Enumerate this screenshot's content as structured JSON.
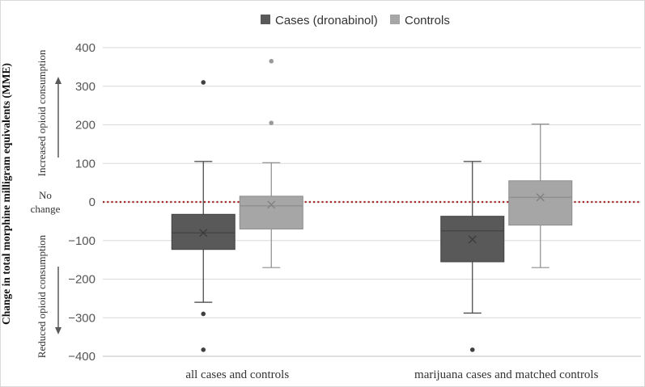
{
  "chart_data": {
    "type": "box",
    "title": "",
    "xlabel": "",
    "ylabel": "Change in total morphine milligram equivalents (MME)",
    "ylim": [
      -400,
      400
    ],
    "yticks": [
      400,
      300,
      200,
      100,
      0,
      -100,
      -200,
      -300,
      -400
    ],
    "grid": true,
    "legend_position": "top-center",
    "categories": [
      "all cases and controls",
      "marijuana cases and matched controls"
    ],
    "series": [
      {
        "name": "Cases (dronabinol)",
        "color": "#595959",
        "boxes": [
          {
            "min": -260,
            "q1": -123,
            "median": -80,
            "mean": -80,
            "q3": -32,
            "max": 105,
            "outliers": [
              310,
              -290,
              -383
            ]
          },
          {
            "min": -288,
            "q1": -155,
            "median": -75,
            "mean": -97,
            "q3": -37,
            "max": 105,
            "outliers": [
              -383
            ]
          }
        ]
      },
      {
        "name": "Controls",
        "color": "#a6a6a6",
        "boxes": [
          {
            "min": -170,
            "q1": -70,
            "median": -10,
            "mean": -7,
            "q3": 15,
            "max": 102,
            "outliers": [
              365,
              205
            ]
          },
          {
            "min": -170,
            "q1": -60,
            "median": 12,
            "mean": 12,
            "q3": 55,
            "max": 202,
            "outliers": []
          }
        ]
      }
    ],
    "reference_line": {
      "value": 0,
      "label_lines": [
        "No",
        "change"
      ],
      "color": "#a52a2a",
      "style": "dotted"
    },
    "annotations": {
      "up": "Increased opioid consumption",
      "down": "Reduced opioid consumption"
    }
  }
}
